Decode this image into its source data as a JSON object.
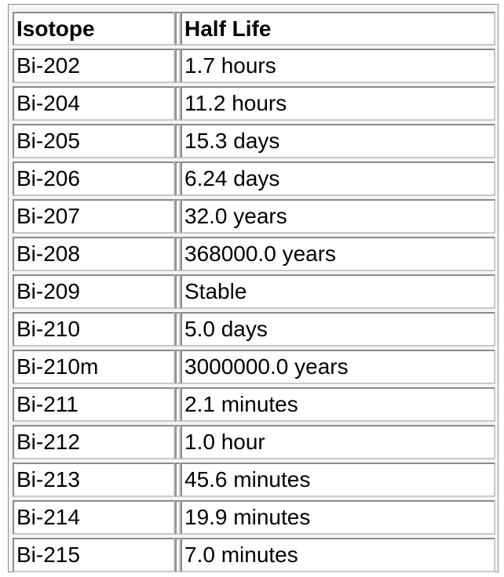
{
  "table": {
    "headers": [
      "Isotope",
      "Half Life"
    ],
    "rows": [
      [
        "Bi-202",
        "1.7 hours"
      ],
      [
        "Bi-204",
        "11.2 hours"
      ],
      [
        "Bi-205",
        "15.3 days"
      ],
      [
        "Bi-206",
        "6.24 days"
      ],
      [
        "Bi-207",
        "32.0 years"
      ],
      [
        "Bi-208",
        "368000.0 years"
      ],
      [
        "Bi-209",
        "Stable"
      ],
      [
        "Bi-210",
        "5.0 days"
      ],
      [
        "Bi-210m",
        "3000000.0 years"
      ],
      [
        "Bi-211",
        "2.1 minutes"
      ],
      [
        "Bi-212",
        "1.0 hour"
      ],
      [
        "Bi-213",
        "45.6 minutes"
      ],
      [
        "Bi-214",
        "19.9 minutes"
      ],
      [
        "Bi-215",
        "7.0 minutes"
      ]
    ]
  }
}
